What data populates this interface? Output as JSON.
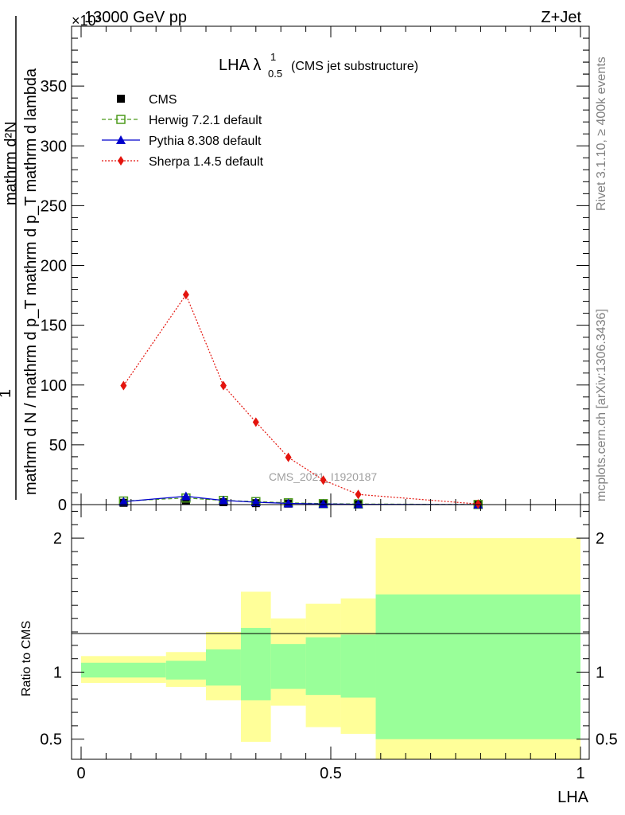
{
  "header": {
    "left": "13000 GeV pp",
    "right": "Z+Jet",
    "exponent": "×10³"
  },
  "side_labels": {
    "rivet": "Rivet 3.1.10, ≥ 400k events",
    "mcplots": "mcplots.cern.ch [arXiv:1306.3436]"
  },
  "watermark": "CMS_2021_I1920187",
  "chart_data": [
    {
      "type": "line",
      "title": "LHA λ",
      "title_sup": "1",
      "title_sub": "0.5",
      "subtitle": "(CMS jet substructure)",
      "ylabel_numerator": "mathrm d²N",
      "ylabel_denominator": "mathrm d N / mathrm d p_T mathrm d p_T mathrm d lambda",
      "ylabel_prefix": "1",
      "xlabel": "",
      "xlim": [
        0,
        1
      ],
      "ylim": [
        0,
        400
      ],
      "y_ticks": [
        0,
        50,
        100,
        150,
        200,
        250,
        300,
        350
      ],
      "y_multiplier": "×10³",
      "legend_position": "top-left",
      "series": [
        {
          "name": "CMS",
          "color": "#000000",
          "marker": "square",
          "x": [
            0.085,
            0.21,
            0.285,
            0.35,
            0.415,
            0.485,
            0.555,
            0.795
          ],
          "y": [
            1.5,
            3.0,
            2.0,
            1.2,
            0.8,
            0.4,
            0.3,
            0.05
          ]
        },
        {
          "name": "Herwig 7.2.1 default",
          "color": "#4c9a1a",
          "marker": "open-square",
          "x": [
            0.085,
            0.21,
            0.285,
            0.35,
            0.415,
            0.485,
            0.555,
            0.795
          ],
          "y": [
            3.0,
            5.5,
            3.5,
            2.5,
            1.5,
            0.8,
            0.5,
            0.1
          ]
        },
        {
          "name": "Pythia 8.308 default",
          "color": "#0000cc",
          "marker": "triangle",
          "x": [
            0.085,
            0.21,
            0.285,
            0.35,
            0.415,
            0.485,
            0.555,
            0.795
          ],
          "y": [
            2.5,
            7.0,
            3.5,
            2.0,
            1.0,
            0.5,
            0.3,
            0.05
          ]
        },
        {
          "name": "Sherpa 1.4.5 default",
          "color": "#e4140d",
          "marker": "diamond",
          "x": [
            0.085,
            0.21,
            0.285,
            0.35,
            0.415,
            0.485,
            0.555,
            0.795
          ],
          "y": [
            99.5,
            175.5,
            99.5,
            69.0,
            39.5,
            20.5,
            8.5,
            0.5
          ]
        }
      ]
    },
    {
      "type": "area",
      "title": "",
      "ylabel": "Ratio to CMS",
      "xlabel": "LHA",
      "xlim": [
        0,
        1
      ],
      "ylim": [
        0.35,
        2.25
      ],
      "y_ticks": [
        0.5,
        1,
        2
      ],
      "y_tick_labels": [
        "0.5",
        "1",
        "2"
      ],
      "x_ticks": [
        0,
        0.5,
        1
      ],
      "x_tick_labels": [
        "0",
        "0.5",
        "1"
      ],
      "bins": [
        {
          "lo": 0.0,
          "hi": 0.17,
          "band1": [
            0.96,
            1.07
          ],
          "band2": [
            0.92,
            1.12
          ]
        },
        {
          "lo": 0.17,
          "hi": 0.25,
          "band1": [
            0.945,
            1.085
          ],
          "band2": [
            0.89,
            1.15
          ]
        },
        {
          "lo": 0.25,
          "hi": 0.32,
          "band1": [
            0.9,
            1.17
          ],
          "band2": [
            0.79,
            1.3
          ]
        },
        {
          "lo": 0.32,
          "hi": 0.38,
          "band1": [
            0.79,
            1.33
          ],
          "band2": [
            0.48,
            1.6
          ]
        },
        {
          "lo": 0.38,
          "hi": 0.45,
          "band1": [
            0.875,
            1.21
          ],
          "band2": [
            0.75,
            1.4
          ]
        },
        {
          "lo": 0.45,
          "hi": 0.52,
          "band1": [
            0.83,
            1.26
          ],
          "band2": [
            0.59,
            1.51
          ]
        },
        {
          "lo": 0.52,
          "hi": 0.59,
          "band1": [
            0.81,
            1.28
          ],
          "band2": [
            0.54,
            1.55
          ]
        },
        {
          "lo": 0.59,
          "hi": 1.0,
          "band1": [
            0.5,
            1.58
          ],
          "band2": [
            0.35,
            2.0
          ]
        }
      ],
      "band_inner_color": "#99ff99",
      "band_outer_color": "#ffff99"
    }
  ]
}
